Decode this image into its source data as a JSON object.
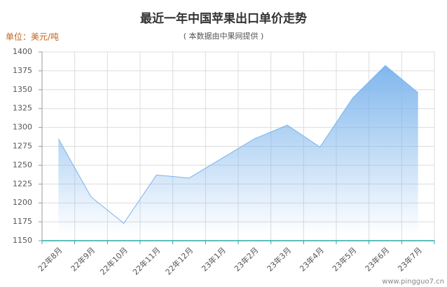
{
  "chart_data": {
    "type": "area",
    "title": "最近一年中国苹果出口单价走势",
    "subtitle": "( 本数据由中果网提供 )",
    "unit_label": "单位：美元/吨",
    "watermark": "www.pingguo7.cn",
    "categories": [
      "22年8月",
      "22年9月",
      "22年10月",
      "22年11月",
      "22年12月",
      "23年1月",
      "23年2月",
      "23年3月",
      "23年4月",
      "23年5月",
      "23年6月",
      "23年7月"
    ],
    "values": [
      1285,
      1208,
      1173,
      1237,
      1233,
      1259,
      1285,
      1303,
      1274,
      1339,
      1382,
      1346
    ],
    "color": "#7ab3ec",
    "ylim": [
      1150,
      1400
    ],
    "yticks": [
      1150,
      1175,
      1200,
      1225,
      1250,
      1275,
      1300,
      1325,
      1350,
      1375,
      1400
    ],
    "grid": true
  }
}
